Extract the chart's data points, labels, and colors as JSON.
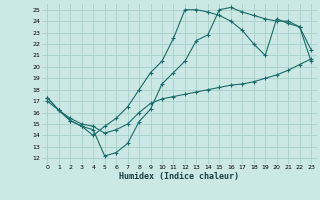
{
  "xlabel": "Humidex (Indice chaleur)",
  "bg_color": "#cce8e4",
  "grid_color": "#a8d0cc",
  "line_color": "#1a6b6b",
  "xlim": [
    -0.5,
    23.5
  ],
  "ylim": [
    11.5,
    25.5
  ],
  "xticks": [
    0,
    1,
    2,
    3,
    4,
    5,
    6,
    7,
    8,
    9,
    10,
    11,
    12,
    13,
    14,
    15,
    16,
    17,
    18,
    19,
    20,
    21,
    22,
    23
  ],
  "yticks": [
    12,
    13,
    14,
    15,
    16,
    17,
    18,
    19,
    20,
    21,
    22,
    23,
    24,
    25
  ],
  "line1_x": [
    0,
    1,
    2,
    3,
    4,
    5,
    6,
    7,
    8,
    9,
    10,
    11,
    12,
    13,
    14,
    15,
    16,
    17,
    18,
    19,
    20,
    21,
    22,
    23
  ],
  "line1_y": [
    17.0,
    16.2,
    15.5,
    15.0,
    14.8,
    14.2,
    14.5,
    15.0,
    16.0,
    16.8,
    17.2,
    17.4,
    17.6,
    17.8,
    18.0,
    18.2,
    18.4,
    18.5,
    18.7,
    19.0,
    19.3,
    19.7,
    20.2,
    20.7
  ],
  "line2_x": [
    0,
    1,
    2,
    3,
    4,
    5,
    6,
    7,
    8,
    9,
    10,
    11,
    12,
    13,
    14,
    15,
    16,
    17,
    18,
    19,
    20,
    21,
    22,
    23
  ],
  "line2_y": [
    17.3,
    16.2,
    15.3,
    14.8,
    14.5,
    12.2,
    12.5,
    13.3,
    15.2,
    16.3,
    18.5,
    19.5,
    20.5,
    22.3,
    22.8,
    25.0,
    25.2,
    24.8,
    24.5,
    24.2,
    24.0,
    24.0,
    23.5,
    21.5
  ],
  "line3_x": [
    0,
    1,
    2,
    3,
    4,
    5,
    6,
    7,
    8,
    9,
    10,
    11,
    12,
    13,
    14,
    15,
    16,
    17,
    18,
    19,
    20,
    21,
    22,
    23
  ],
  "line3_y": [
    17.3,
    16.2,
    15.3,
    14.8,
    14.0,
    14.8,
    15.5,
    16.5,
    18.0,
    19.5,
    20.5,
    22.5,
    25.0,
    25.0,
    24.8,
    24.5,
    24.0,
    23.2,
    22.0,
    21.0,
    24.2,
    23.8,
    23.5,
    20.5
  ]
}
